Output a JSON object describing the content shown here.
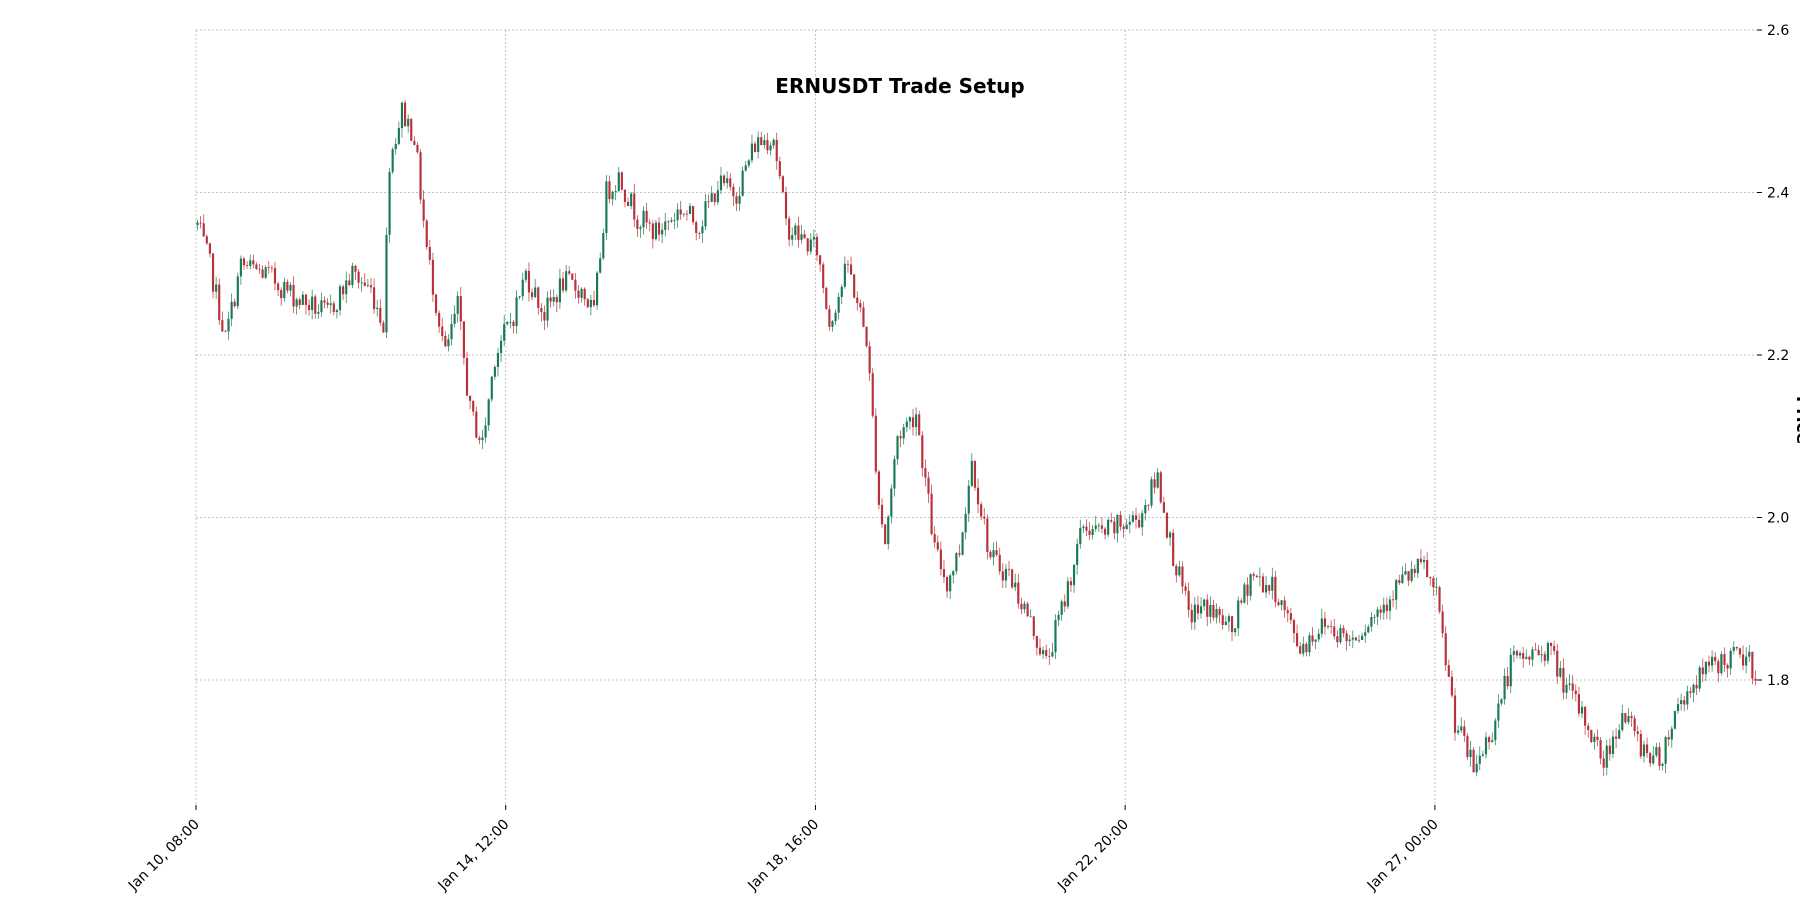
{
  "chart_data": {
    "type": "candlestick",
    "title": "ERNUSDT Trade Setup",
    "xlabel": "",
    "ylabel": "Price",
    "x_ticks": [
      "Jan 10, 08:00",
      "Jan 14, 12:00",
      "Jan 18, 16:00",
      "Jan 22, 20:00",
      "Jan 27, 00:00"
    ],
    "y_ticks": [
      1.8,
      2.0,
      2.2,
      2.4,
      2.6
    ],
    "ylim": [
      1.65,
      2.6
    ],
    "xlim": [
      "2025-01-10T08:00",
      "2025-01-31T08:00"
    ],
    "grid": true,
    "colors": {
      "up": "#1a7a55",
      "down": "#b8323a",
      "grid": "#b0b0b0"
    },
    "price_path": [
      [
        "2025-01-10T08:00",
        2.36
      ],
      [
        "2025-01-10T12:00",
        2.31
      ],
      [
        "2025-01-10T17:00",
        2.22
      ],
      [
        "2025-01-10T22:00",
        2.31
      ],
      [
        "2025-01-11T06:00",
        2.3
      ],
      [
        "2025-01-11T16:00",
        2.27
      ],
      [
        "2025-01-12T02:00",
        2.25
      ],
      [
        "2025-01-12T10:00",
        2.3
      ],
      [
        "2025-01-12T16:00",
        2.28
      ],
      [
        "2025-01-12T20:00",
        2.24
      ],
      [
        "2025-01-12T22:00",
        2.44
      ],
      [
        "2025-01-13T02:00",
        2.5
      ],
      [
        "2025-01-13T06:00",
        2.47
      ],
      [
        "2025-01-13T10:00",
        2.33
      ],
      [
        "2025-01-13T16:00",
        2.2
      ],
      [
        "2025-01-13T20:00",
        2.26
      ],
      [
        "2025-01-14T00:00",
        2.13
      ],
      [
        "2025-01-14T04:00",
        2.09
      ],
      [
        "2025-01-14T08:00",
        2.2
      ],
      [
        "2025-01-14T14:00",
        2.25
      ],
      [
        "2025-01-14T18:00",
        2.3
      ],
      [
        "2025-01-15T00:00",
        2.25
      ],
      [
        "2025-01-15T06:00",
        2.29
      ],
      [
        "2025-01-15T12:00",
        2.28
      ],
      [
        "2025-01-15T16:00",
        2.25
      ],
      [
        "2025-01-15T20:00",
        2.4
      ],
      [
        "2025-01-16T00:00",
        2.42
      ],
      [
        "2025-01-16T06:00",
        2.37
      ],
      [
        "2025-01-16T12:00",
        2.35
      ],
      [
        "2025-01-16T20:00",
        2.38
      ],
      [
        "2025-01-17T02:00",
        2.36
      ],
      [
        "2025-01-17T08:00",
        2.41
      ],
      [
        "2025-01-17T14:00",
        2.4
      ],
      [
        "2025-01-17T20:00",
        2.46
      ],
      [
        "2025-01-18T02:00",
        2.47
      ],
      [
        "2025-01-18T06:00",
        2.36
      ],
      [
        "2025-01-18T12:00",
        2.34
      ],
      [
        "2025-01-18T16:00",
        2.33
      ],
      [
        "2025-01-18T20:00",
        2.24
      ],
      [
        "2025-01-19T02:00",
        2.31
      ],
      [
        "2025-01-19T08:00",
        2.22
      ],
      [
        "2025-01-19T12:00",
        2.02
      ],
      [
        "2025-01-19T14:00",
        1.97
      ],
      [
        "2025-01-19T18:00",
        2.1
      ],
      [
        "2025-01-20T00:00",
        2.13
      ],
      [
        "2025-01-20T06:00",
        1.96
      ],
      [
        "2025-01-20T10:00",
        1.92
      ],
      [
        "2025-01-20T14:00",
        1.96
      ],
      [
        "2025-01-20T18:00",
        2.07
      ],
      [
        "2025-01-21T00:00",
        1.95
      ],
      [
        "2025-01-21T06:00",
        1.93
      ],
      [
        "2025-01-21T12:00",
        1.88
      ],
      [
        "2025-01-21T18:00",
        1.82
      ],
      [
        "2025-01-22T00:00",
        1.9
      ],
      [
        "2025-01-22T06:00",
        1.99
      ],
      [
        "2025-01-22T12:00",
        1.98
      ],
      [
        "2025-01-22T18:00",
        1.99
      ],
      [
        "2025-01-23T00:00",
        2.0
      ],
      [
        "2025-01-23T06:00",
        2.05
      ],
      [
        "2025-01-23T10:00",
        1.97
      ],
      [
        "2025-01-23T16:00",
        1.88
      ],
      [
        "2025-01-23T22:00",
        1.89
      ],
      [
        "2025-01-24T06:00",
        1.86
      ],
      [
        "2025-01-24T12:00",
        1.93
      ],
      [
        "2025-01-24T20:00",
        1.91
      ],
      [
        "2025-01-25T04:00",
        1.84
      ],
      [
        "2025-01-25T12:00",
        1.87
      ],
      [
        "2025-01-25T20:00",
        1.85
      ],
      [
        "2025-01-26T04:00",
        1.88
      ],
      [
        "2025-01-26T12:00",
        1.92
      ],
      [
        "2025-01-26T20:00",
        1.94
      ],
      [
        "2025-01-27T00:00",
        1.9
      ],
      [
        "2025-01-27T06:00",
        1.75
      ],
      [
        "2025-01-27T12:00",
        1.69
      ],
      [
        "2025-01-27T18:00",
        1.74
      ],
      [
        "2025-01-28T00:00",
        1.82
      ],
      [
        "2025-01-28T06:00",
        1.83
      ],
      [
        "2025-01-28T12:00",
        1.84
      ],
      [
        "2025-01-28T18:00",
        1.79
      ],
      [
        "2025-01-29T00:00",
        1.75
      ],
      [
        "2025-01-29T06:00",
        1.7
      ],
      [
        "2025-01-29T12:00",
        1.76
      ],
      [
        "2025-01-29T18:00",
        1.72
      ],
      [
        "2025-01-30T00:00",
        1.7
      ],
      [
        "2025-01-30T06:00",
        1.77
      ],
      [
        "2025-01-30T12:00",
        1.8
      ],
      [
        "2025-01-30T18:00",
        1.82
      ],
      [
        "2025-01-31T02:00",
        1.83
      ],
      [
        "2025-01-31T08:00",
        1.81
      ]
    ]
  }
}
